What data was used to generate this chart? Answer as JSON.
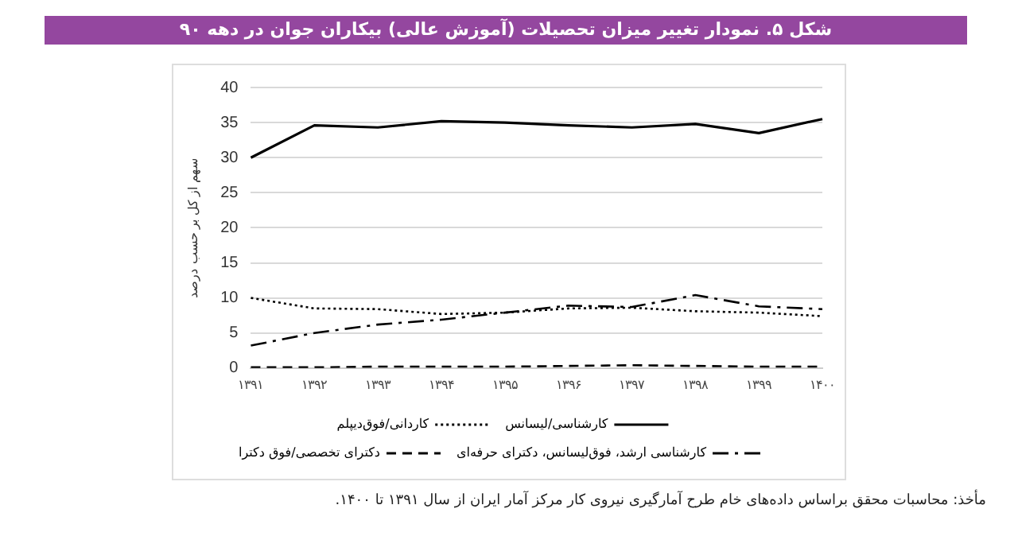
{
  "chart_data": {
    "type": "line",
    "title": "شکل ۵. نمودار تغییر میزان تحصیلات (آموزش عالی) بیکاران جوان در دهه ۹۰",
    "ylabel": "سهم از کل بر حسب درصد",
    "categories": [
      "۱۳۹۱",
      "۱۳۹۲",
      "۱۳۹۳",
      "۱۳۹۴",
      "۱۳۹۵",
      "۱۳۹۶",
      "۱۳۹۷",
      "۱۳۹۸",
      "۱۳۹۹",
      "۱۴۰۰"
    ],
    "series": [
      {
        "name": "کارشناسی/لیسانس",
        "color": "#000000",
        "line_style": "solid",
        "values": [
          30,
          34.6,
          34.3,
          35.2,
          35.0,
          34.6,
          34.3,
          34.8,
          33.5,
          35.5
        ]
      },
      {
        "name": "کاردانی/فوق‌دیپلم",
        "color": "#000000",
        "line_style": "dotted",
        "values": [
          10,
          8.5,
          8.4,
          7.7,
          7.9,
          8.5,
          8.6,
          8.1,
          7.9,
          7.4
        ]
      },
      {
        "name": "کارشناسی ارشد، فوق‌لیسانس، دکترای حرفه‌ای",
        "color": "#000000",
        "line_style": "dashdot",
        "values": [
          3.2,
          5,
          6.2,
          6.9,
          7.9,
          8.9,
          8.7,
          10.4,
          8.8,
          8.4
        ]
      },
      {
        "name": "دکترای تخصصی/فوق دکترا",
        "color": "#000000",
        "line_style": "dashed",
        "values": [
          0.1,
          0.1,
          0.2,
          0.2,
          0.2,
          0.3,
          0.4,
          0.3,
          0.2,
          0.2
        ]
      }
    ],
    "ylim": [
      0,
      40
    ],
    "yticks": [
      0,
      5,
      10,
      15,
      20,
      25,
      30,
      35,
      40
    ],
    "grid": "y",
    "legend": "bottom",
    "marker": "none",
    "annotations": [
      "مأخذ: محاسبات محقق براساس داده‌های خام طرح آمارگیری نیروی کار مرکز آمار ایران از سال ۱۳۹۱ تا ۱۴۰۰."
    ]
  }
}
